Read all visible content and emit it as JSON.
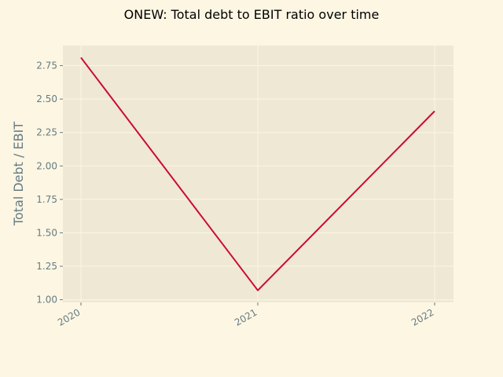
{
  "chart_data": {
    "type": "line",
    "title": "ONEW: Total debt to EBIT ratio over time",
    "xlabel": "",
    "ylabel": "Total Debt / EBIT",
    "categories": [
      "2020",
      "2021",
      "2022"
    ],
    "series": [
      {
        "values": [
          2.81,
          1.07,
          2.41
        ]
      }
    ],
    "yticks": [
      "1.00",
      "1.25",
      "1.50",
      "1.75",
      "2.00",
      "2.25",
      "2.50",
      "2.75"
    ],
    "ylim": [
      0.98,
      2.9
    ],
    "grid": true,
    "legend": "none"
  },
  "colors": {
    "background": "#fdf6e3",
    "plot_background": "#eee8d5",
    "grid": "#fdf6e3",
    "line": "#cb0c2f",
    "tick_text": "#657b83"
  }
}
